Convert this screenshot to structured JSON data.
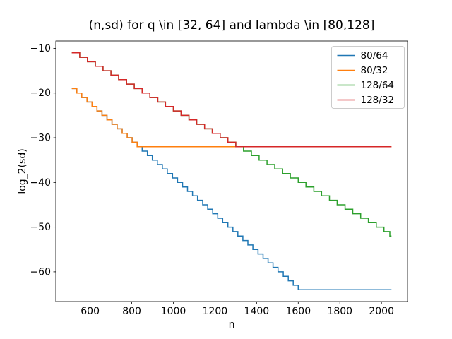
{
  "chart_data": {
    "type": "line",
    "subtype": "step",
    "title": "(n,sd) for q \\in [32, 64] and lambda \\in [80,128]",
    "xlabel": "n",
    "ylabel": "log_2(sd)",
    "xlim": [
      435,
      2125
    ],
    "ylim": [
      -66.65,
      -8.35
    ],
    "grid": false,
    "legend": {
      "location": "upper right"
    },
    "x_ticks": [
      {
        "v": 600,
        "label": "600"
      },
      {
        "v": 800,
        "label": "800"
      },
      {
        "v": 1000,
        "label": "1000"
      },
      {
        "v": 1200,
        "label": "1200"
      },
      {
        "v": 1400,
        "label": "1400"
      },
      {
        "v": 1600,
        "label": "1600"
      },
      {
        "v": 1800,
        "label": "1800"
      },
      {
        "v": 2000,
        "label": "2000"
      }
    ],
    "y_ticks": [
      {
        "v": -10,
        "label": "−10"
      },
      {
        "v": -20,
        "label": "−20"
      },
      {
        "v": -30,
        "label": "−30"
      },
      {
        "v": -40,
        "label": "−40"
      },
      {
        "v": -50,
        "label": "−50"
      },
      {
        "v": -60,
        "label": "−60"
      }
    ],
    "series": [
      {
        "name": "80/64",
        "color": "#1f77b4",
        "end_n": 2048,
        "points": [
          [
            512,
            -19
          ],
          [
            536,
            -20
          ],
          [
            560,
            -21
          ],
          [
            585,
            -22
          ],
          [
            609,
            -23
          ],
          [
            633,
            -24
          ],
          [
            657,
            -25
          ],
          [
            681,
            -26
          ],
          [
            705,
            -27
          ],
          [
            730,
            -28
          ],
          [
            754,
            -29
          ],
          [
            778,
            -30
          ],
          [
            802,
            -31
          ],
          [
            826,
            -32
          ],
          [
            850,
            -33
          ],
          [
            875,
            -34
          ],
          [
            899,
            -35
          ],
          [
            923,
            -36
          ],
          [
            947,
            -37
          ],
          [
            971,
            -38
          ],
          [
            996,
            -39
          ],
          [
            1020,
            -40
          ],
          [
            1044,
            -41
          ],
          [
            1068,
            -42
          ],
          [
            1092,
            -43
          ],
          [
            1116,
            -44
          ],
          [
            1141,
            -45
          ],
          [
            1165,
            -46
          ],
          [
            1189,
            -47
          ],
          [
            1213,
            -48
          ],
          [
            1237,
            -49
          ],
          [
            1262,
            -50
          ],
          [
            1286,
            -51
          ],
          [
            1310,
            -52
          ],
          [
            1334,
            -53
          ],
          [
            1358,
            -54
          ],
          [
            1382,
            -55
          ],
          [
            1407,
            -56
          ],
          [
            1431,
            -57
          ],
          [
            1455,
            -58
          ],
          [
            1479,
            -59
          ],
          [
            1503,
            -60
          ],
          [
            1528,
            -61
          ],
          [
            1552,
            -62
          ],
          [
            1576,
            -63
          ],
          [
            1600,
            -64
          ]
        ]
      },
      {
        "name": "80/32",
        "color": "#ff7f0e",
        "end_n": 2048,
        "points": [
          [
            512,
            -19
          ],
          [
            536,
            -20
          ],
          [
            560,
            -21
          ],
          [
            585,
            -22
          ],
          [
            609,
            -23
          ],
          [
            633,
            -24
          ],
          [
            657,
            -25
          ],
          [
            681,
            -26
          ],
          [
            705,
            -27
          ],
          [
            730,
            -28
          ],
          [
            754,
            -29
          ],
          [
            778,
            -30
          ],
          [
            802,
            -31
          ],
          [
            826,
            -32
          ]
        ]
      },
      {
        "name": "128/64",
        "color": "#2ca02c",
        "end_n": 2048,
        "points": [
          [
            512,
            -11
          ],
          [
            550,
            -12
          ],
          [
            587,
            -13
          ],
          [
            625,
            -14
          ],
          [
            662,
            -15
          ],
          [
            700,
            -16
          ],
          [
            737,
            -17
          ],
          [
            775,
            -18
          ],
          [
            812,
            -19
          ],
          [
            850,
            -20
          ],
          [
            887,
            -21
          ],
          [
            925,
            -22
          ],
          [
            962,
            -23
          ],
          [
            1000,
            -24
          ],
          [
            1037,
            -25
          ],
          [
            1075,
            -26
          ],
          [
            1112,
            -27
          ],
          [
            1150,
            -28
          ],
          [
            1187,
            -29
          ],
          [
            1225,
            -30
          ],
          [
            1262,
            -31
          ],
          [
            1300,
            -32
          ],
          [
            1337,
            -33
          ],
          [
            1375,
            -34
          ],
          [
            1412,
            -35
          ],
          [
            1450,
            -36
          ],
          [
            1487,
            -37
          ],
          [
            1525,
            -38
          ],
          [
            1562,
            -39
          ],
          [
            1600,
            -40
          ],
          [
            1637,
            -41
          ],
          [
            1675,
            -42
          ],
          [
            1712,
            -43
          ],
          [
            1750,
            -44
          ],
          [
            1787,
            -45
          ],
          [
            1825,
            -46
          ],
          [
            1862,
            -47
          ],
          [
            1900,
            -48
          ],
          [
            1937,
            -49
          ],
          [
            1975,
            -50
          ],
          [
            2012,
            -51
          ],
          [
            2040,
            -52
          ]
        ]
      },
      {
        "name": "128/32",
        "color": "#d62728",
        "end_n": 2048,
        "points": [
          [
            512,
            -11
          ],
          [
            550,
            -12
          ],
          [
            587,
            -13
          ],
          [
            625,
            -14
          ],
          [
            662,
            -15
          ],
          [
            700,
            -16
          ],
          [
            737,
            -17
          ],
          [
            775,
            -18
          ],
          [
            812,
            -19
          ],
          [
            850,
            -20
          ],
          [
            887,
            -21
          ],
          [
            925,
            -22
          ],
          [
            962,
            -23
          ],
          [
            1000,
            -24
          ],
          [
            1037,
            -25
          ],
          [
            1075,
            -26
          ],
          [
            1112,
            -27
          ],
          [
            1150,
            -28
          ],
          [
            1187,
            -29
          ],
          [
            1225,
            -30
          ],
          [
            1262,
            -31
          ],
          [
            1300,
            -32
          ]
        ]
      }
    ]
  },
  "style": {
    "spine_color": "#000000",
    "legend_border_color": "#cccccc",
    "background": "#ffffff"
  }
}
